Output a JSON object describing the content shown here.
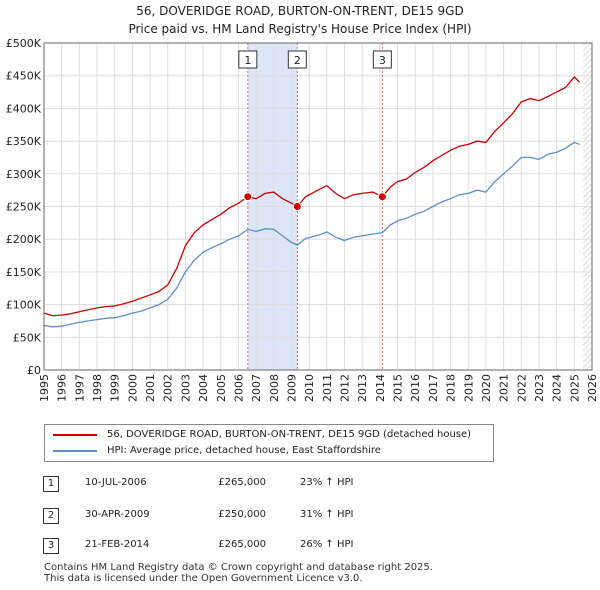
{
  "header": {
    "title_line1": "56, DOVERIDGE ROAD, BURTON-ON-TRENT, DE15 9GD",
    "title_line2": "Price paid vs. HM Land Registry's House Price Index (HPI)"
  },
  "legend": {
    "property_label": "56, DOVERIDGE ROAD, BURTON-ON-TRENT, DE15 9GD (detached house)",
    "hpi_label": "HPI: Average price, detached house, East Staffordshire"
  },
  "sales": [
    {
      "num": "1",
      "date": "10-JUL-2006",
      "price": "£265,000",
      "hpi": "23% ↑ HPI"
    },
    {
      "num": "2",
      "date": "30-APR-2009",
      "price": "£250,000",
      "hpi": "31% ↑ HPI"
    },
    {
      "num": "3",
      "date": "21-FEB-2014",
      "price": "£265,000",
      "hpi": "26% ↑ HPI"
    }
  ],
  "footer": {
    "line1": "Contains HM Land Registry data © Crown copyright and database right 2025.",
    "line2": "This data is licensed under the Open Government Licence v3.0."
  },
  "colors": {
    "property": "#cc0000",
    "hpi": "#5b8fcf",
    "shade": "#dde6f7",
    "grid": "#dddddd",
    "marker_line": "#e06666"
  },
  "chart_data": {
    "type": "line",
    "xlim": [
      1995,
      2026
    ],
    "ylim": [
      0,
      500000
    ],
    "x_ticks": [
      1995,
      1996,
      1997,
      1998,
      1999,
      2000,
      2001,
      2002,
      2003,
      2004,
      2005,
      2006,
      2007,
      2008,
      2009,
      2010,
      2011,
      2012,
      2013,
      2014,
      2015,
      2016,
      2017,
      2018,
      2019,
      2020,
      2021,
      2022,
      2023,
      2024,
      2025,
      2026
    ],
    "x_tick_labels": [
      "1995",
      "1996",
      "1997",
      "1998",
      "1999",
      "2000",
      "2001",
      "2002",
      "2003",
      "2004",
      "2005",
      "2006",
      "2007",
      "2008",
      "2009",
      "2010",
      "2011",
      "2012",
      "2013",
      "2014",
      "2015",
      "2016",
      "2017",
      "2018",
      "2019",
      "2020",
      "2021",
      "2022",
      "2023",
      "2024",
      "2025",
      "2026"
    ],
    "y_ticks": [
      0,
      50000,
      100000,
      150000,
      200000,
      250000,
      300000,
      350000,
      400000,
      450000,
      500000
    ],
    "y_tick_labels": [
      "£0",
      "£50K",
      "£100K",
      "£150K",
      "£200K",
      "£250K",
      "£300K",
      "£350K",
      "£400K",
      "£450K",
      "£500K"
    ],
    "shaded_ranges": [
      [
        2006.53,
        2009.33
      ]
    ],
    "hatch_from": 2025.5,
    "sale_markers": [
      {
        "label": "1",
        "x": 2006.53,
        "y": 265000
      },
      {
        "label": "2",
        "x": 2009.33,
        "y": 250000
      },
      {
        "label": "3",
        "x": 2014.14,
        "y": 265000
      }
    ],
    "series": [
      {
        "name": "56, DOVERIDGE ROAD, BURTON-ON-TRENT, DE15 9GD (detached house)",
        "color": "#cc0000",
        "x": [
          1995.0,
          1995.5,
          1996.0,
          1996.5,
          1997.0,
          1997.5,
          1998.0,
          1998.5,
          1999.0,
          1999.5,
          2000.0,
          2000.5,
          2001.0,
          2001.5,
          2002.0,
          2002.5,
          2003.0,
          2003.5,
          2004.0,
          2004.5,
          2005.0,
          2005.5,
          2006.0,
          2006.53,
          2007.0,
          2007.5,
          2008.0,
          2008.5,
          2009.0,
          2009.33,
          2009.8,
          2010.5,
          2011.0,
          2011.5,
          2012.0,
          2012.5,
          2013.0,
          2013.6,
          2014.14,
          2014.6,
          2015.0,
          2015.5,
          2016.0,
          2016.5,
          2017.0,
          2017.5,
          2018.0,
          2018.5,
          2019.0,
          2019.5,
          2020.0,
          2020.5,
          2021.0,
          2021.5,
          2022.0,
          2022.5,
          2023.0,
          2023.5,
          2024.0,
          2024.5,
          2025.0,
          2025.3
        ],
        "y": [
          87000,
          83000,
          84000,
          86000,
          89000,
          92000,
          95000,
          97000,
          98000,
          101000,
          105000,
          110000,
          115000,
          120000,
          130000,
          155000,
          190000,
          210000,
          222000,
          230000,
          238000,
          248000,
          255000,
          265000,
          262000,
          270000,
          272000,
          262000,
          255000,
          250000,
          265000,
          275000,
          282000,
          270000,
          262000,
          268000,
          270000,
          272000,
          265000,
          280000,
          288000,
          292000,
          302000,
          310000,
          320000,
          328000,
          336000,
          342000,
          345000,
          350000,
          348000,
          365000,
          378000,
          392000,
          410000,
          415000,
          412000,
          418000,
          425000,
          432000,
          448000,
          440000
        ]
      },
      {
        "name": "HPI: Average price, detached house, East Staffordshire",
        "color": "#5b8fcf",
        "x": [
          1995.0,
          1995.5,
          1996.0,
          1996.5,
          1997.0,
          1997.5,
          1998.0,
          1998.5,
          1999.0,
          1999.5,
          2000.0,
          2000.5,
          2001.0,
          2001.5,
          2002.0,
          2002.5,
          2003.0,
          2003.5,
          2004.0,
          2004.5,
          2005.0,
          2005.5,
          2006.0,
          2006.53,
          2007.0,
          2007.5,
          2008.0,
          2008.5,
          2009.0,
          2009.33,
          2009.8,
          2010.5,
          2011.0,
          2011.5,
          2012.0,
          2012.5,
          2013.0,
          2013.6,
          2014.14,
          2014.6,
          2015.0,
          2015.5,
          2016.0,
          2016.5,
          2017.0,
          2017.5,
          2018.0,
          2018.5,
          2019.0,
          2019.5,
          2020.0,
          2020.5,
          2021.0,
          2021.5,
          2022.0,
          2022.5,
          2023.0,
          2023.5,
          2024.0,
          2024.5,
          2025.0,
          2025.3
        ],
        "y": [
          68000,
          66000,
          67000,
          70000,
          73000,
          75000,
          77000,
          79000,
          80000,
          83000,
          87000,
          90000,
          95000,
          100000,
          108000,
          125000,
          150000,
          168000,
          180000,
          187000,
          193000,
          200000,
          205000,
          215000,
          212000,
          216000,
          215000,
          205000,
          195000,
          191000,
          201000,
          206000,
          211000,
          203000,
          198000,
          203000,
          205000,
          208000,
          210000,
          222000,
          228000,
          232000,
          238000,
          243000,
          250000,
          257000,
          262000,
          268000,
          270000,
          275000,
          272000,
          288000,
          300000,
          312000,
          325000,
          325000,
          322000,
          330000,
          333000,
          339000,
          348000,
          345000
        ]
      }
    ]
  }
}
